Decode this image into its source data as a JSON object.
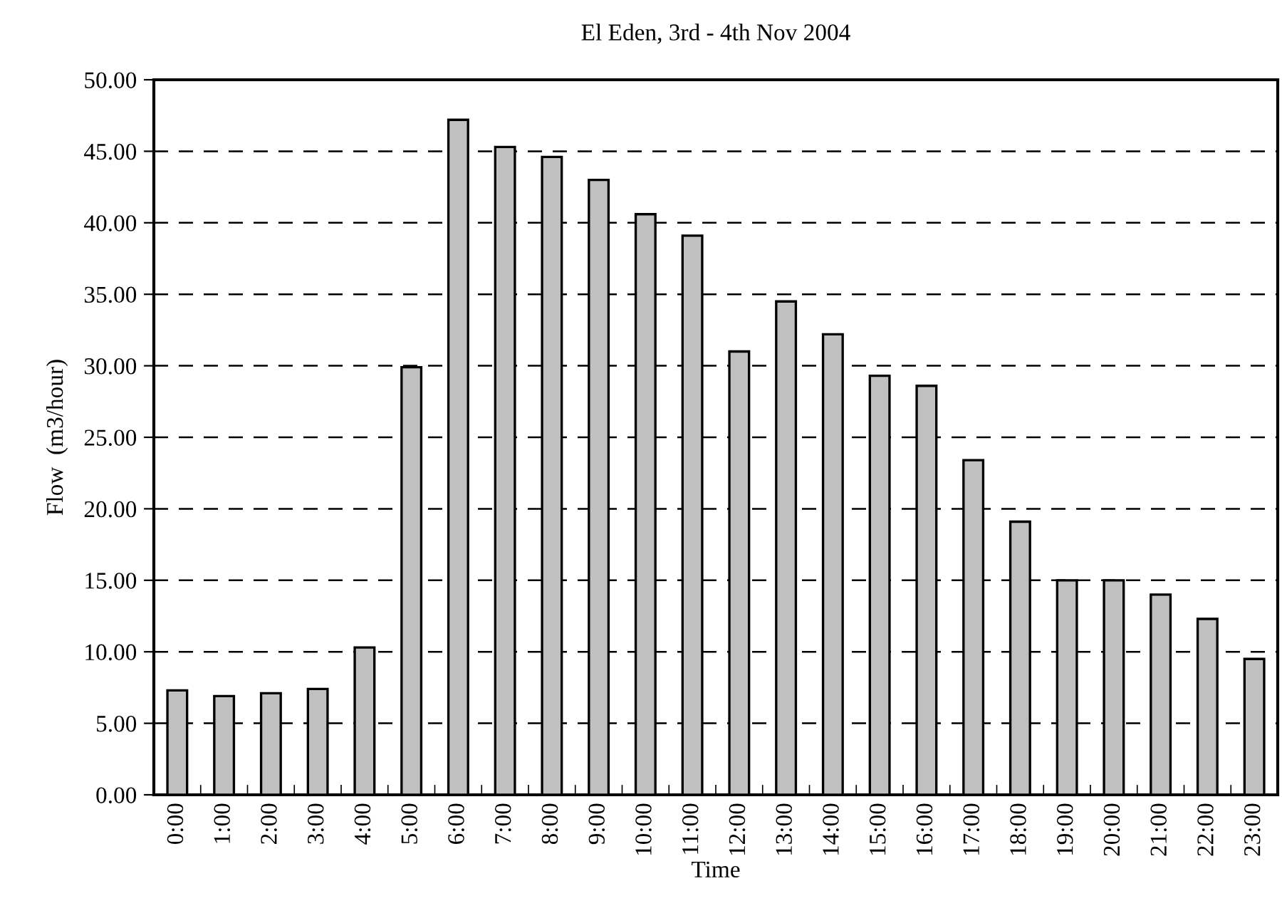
{
  "chart_data": {
    "type": "bar",
    "title": "El Eden, 3rd - 4th Nov 2004",
    "xlabel": "Time",
    "ylabel": "Flow  (m3/hour)",
    "categories": [
      "0:00",
      "1:00",
      "2:00",
      "3:00",
      "4:00",
      "5:00",
      "6:00",
      "7:00",
      "8:00",
      "9:00",
      "10:00",
      "11:00",
      "12:00",
      "13:00",
      "14:00",
      "15:00",
      "16:00",
      "17:00",
      "18:00",
      "19:00",
      "20:00",
      "21:00",
      "22:00",
      "23:00"
    ],
    "values": [
      7.3,
      6.9,
      7.1,
      7.4,
      10.3,
      29.9,
      47.2,
      45.3,
      44.6,
      43.0,
      40.6,
      39.1,
      31.0,
      34.5,
      32.2,
      29.3,
      28.6,
      23.4,
      19.1,
      15.0,
      15.0,
      14.0,
      12.3,
      9.5
    ],
    "color": "#c0c0c0",
    "ylim": [
      0,
      50
    ],
    "yticks": [
      {
        "value": 0,
        "label": "0.00"
      },
      {
        "value": 5,
        "label": "5.00"
      },
      {
        "value": 10,
        "label": "10.00"
      },
      {
        "value": 15,
        "label": "15.00"
      },
      {
        "value": 20,
        "label": "20.00"
      },
      {
        "value": 25,
        "label": "25.00"
      },
      {
        "value": 30,
        "label": "30.00"
      },
      {
        "value": 35,
        "label": "35.00"
      },
      {
        "value": 40,
        "label": "40.00"
      },
      {
        "value": 45,
        "label": "45.00"
      },
      {
        "value": 50,
        "label": "50.00"
      }
    ],
    "grid": "y"
  }
}
